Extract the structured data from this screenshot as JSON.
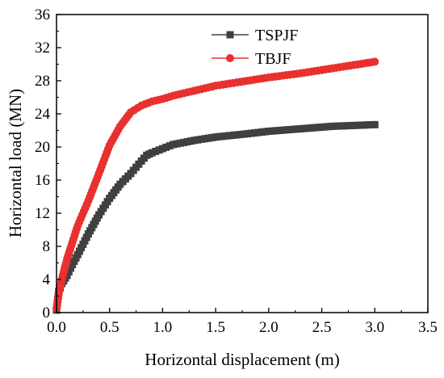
{
  "chart_data": {
    "type": "line",
    "title": "",
    "xlabel": "Horizontal displacement (m)",
    "ylabel": "Horizontal load (MN)",
    "xlim": [
      0.0,
      3.5
    ],
    "ylim": [
      0,
      36
    ],
    "x_ticks": [
      0.0,
      0.5,
      1.0,
      1.5,
      2.0,
      2.5,
      3.0,
      3.5
    ],
    "x_tick_labels": [
      "0.0",
      "0.5",
      "1.0",
      "1.5",
      "2.0",
      "2.5",
      "3.0",
      "3.5"
    ],
    "y_ticks": [
      0,
      4,
      8,
      12,
      16,
      20,
      24,
      28,
      32,
      36
    ],
    "y_tick_labels": [
      "0",
      "4",
      "8",
      "12",
      "16",
      "20",
      "24",
      "28",
      "32",
      "36"
    ],
    "grid": false,
    "legend_position": "top-center",
    "series": [
      {
        "name": "TSPJF",
        "color": "#404040",
        "marker": "square",
        "x": [
          0.0,
          0.02,
          0.05,
          0.1,
          0.15,
          0.2,
          0.3,
          0.4,
          0.5,
          0.6,
          0.7,
          0.8,
          0.85,
          0.9,
          1.1,
          1.3,
          1.5,
          1.8,
          2.0,
          2.3,
          2.6,
          2.8,
          3.0
        ],
        "y": [
          0.3,
          2.5,
          3.5,
          4.5,
          5.8,
          7.0,
          9.5,
          11.8,
          13.8,
          15.5,
          16.8,
          18.3,
          19.0,
          19.3,
          20.3,
          20.8,
          21.2,
          21.6,
          21.9,
          22.2,
          22.5,
          22.6,
          22.7
        ]
      },
      {
        "name": "TBJF",
        "color": "#e8312f",
        "marker": "circle",
        "x": [
          0.0,
          0.03,
          0.06,
          0.1,
          0.15,
          0.2,
          0.3,
          0.4,
          0.5,
          0.6,
          0.7,
          0.8,
          0.9,
          1.0,
          1.1,
          1.3,
          1.5,
          1.8,
          2.0,
          2.3,
          2.6,
          2.8,
          3.0
        ],
        "y": [
          0.5,
          3.0,
          4.5,
          6.5,
          8.5,
          10.5,
          13.5,
          16.8,
          20.2,
          22.5,
          24.2,
          25.0,
          25.5,
          25.8,
          26.2,
          26.8,
          27.4,
          28.0,
          28.4,
          28.9,
          29.5,
          29.9,
          30.3
        ]
      }
    ]
  }
}
